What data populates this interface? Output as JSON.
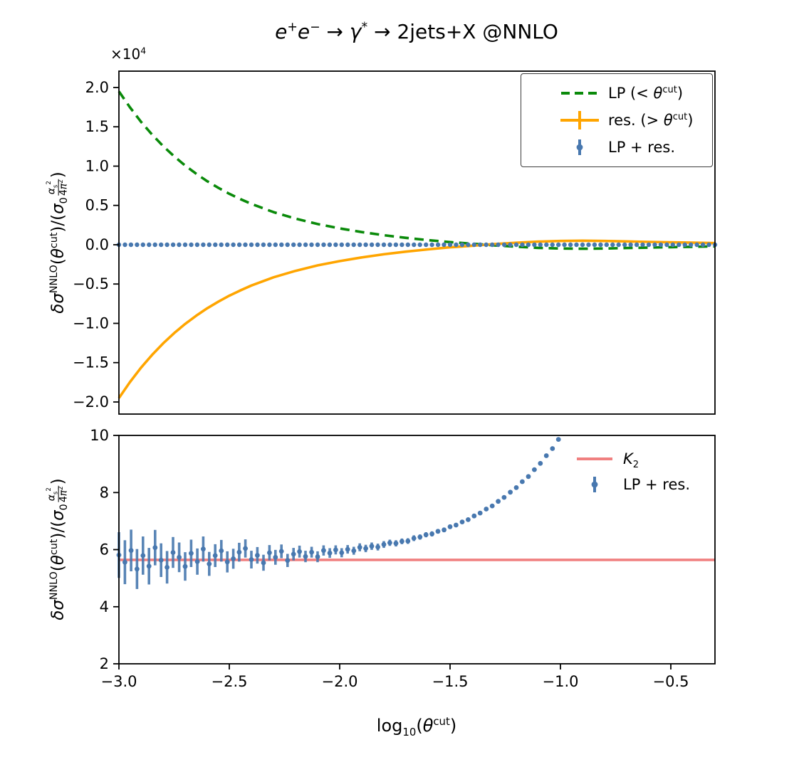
{
  "title": "_e_^+^_e_^−^ → _γ_^*^ → 2jets+X @NNLO",
  "xlabel": "log~10~(_θ_^cut^)",
  "colors": {
    "lp_green": "#0a8a0a",
    "res_orange": "#ffa500",
    "sum_blue": "#4878af",
    "k2_pink": "#f08080",
    "axis": "#000000"
  },
  "chart_data": [
    {
      "id": "top",
      "type": "line",
      "ylabel": "_δσ_^NNLO^(_θ_^cut^)/(_σ_~0~{_α_~s~^2^|4_π_^2^})",
      "offset_text": "×10^4^",
      "y_scale_factor": "1e4",
      "xlim": [
        -3.0,
        -0.3
      ],
      "ylim": [
        -2.154,
        2.208
      ],
      "xticks": [
        -3.0,
        -2.5,
        -2.0,
        -1.5,
        -1.0,
        -0.5
      ],
      "xticklabels": [
        "−3.0",
        "−2.5",
        "−2.0",
        "−1.5",
        "−1.0",
        "−0.5"
      ],
      "yticks": [
        2.0,
        1.5,
        1.0,
        0.5,
        0.0,
        -0.5,
        -1.0,
        -1.5,
        -2.0
      ],
      "yticklabels": [
        "2.0",
        "1.5",
        "1.0",
        "0.5",
        "0.0",
        "−0.5",
        "−1.0",
        "−1.5",
        "−2.0"
      ],
      "grid": false,
      "series": [
        {
          "name": "LP (< θ^cut)",
          "name_id": "lp",
          "kind": "line",
          "dash": true,
          "color": "#0a8a0a",
          "lw": 3.6,
          "x": [
            -3.0,
            -2.95,
            -2.9,
            -2.85,
            -2.8,
            -2.75,
            -2.7,
            -2.65,
            -2.6,
            -2.55,
            -2.5,
            -2.45,
            -2.4,
            -2.3,
            -2.2,
            -2.1,
            -2.0,
            -1.9,
            -1.8,
            -1.7,
            -1.6,
            -1.5,
            -1.4,
            -1.3,
            -1.2,
            -1.1,
            -1.0,
            -0.9,
            -0.8,
            -0.7,
            -0.6,
            -0.5,
            -0.4,
            -0.3
          ],
          "y": [
            1.95,
            1.747,
            1.564,
            1.402,
            1.255,
            1.125,
            1.007,
            0.903,
            0.808,
            0.725,
            0.648,
            0.581,
            0.519,
            0.415,
            0.332,
            0.263,
            0.208,
            0.161,
            0.121,
            0.088,
            0.059,
            0.033,
            0.013,
            -0.008,
            -0.025,
            -0.04,
            -0.048,
            -0.051,
            -0.048,
            -0.042,
            -0.036,
            -0.031,
            -0.026,
            -0.021
          ]
        },
        {
          "name": "res. (> θ^cut)",
          "name_id": "res",
          "kind": "line",
          "dash": false,
          "color": "#ffa500",
          "lw": 3.6,
          "x": [
            -3.0,
            -2.95,
            -2.9,
            -2.85,
            -2.8,
            -2.75,
            -2.7,
            -2.65,
            -2.6,
            -2.55,
            -2.5,
            -2.45,
            -2.4,
            -2.3,
            -2.2,
            -2.1,
            -2.0,
            -1.9,
            -1.8,
            -1.7,
            -1.6,
            -1.5,
            -1.4,
            -1.3,
            -1.2,
            -1.1,
            -1.0,
            -0.9,
            -0.8,
            -0.7,
            -0.6,
            -0.5,
            -0.4,
            -0.3
          ],
          "y": [
            -1.95,
            -1.747,
            -1.564,
            -1.402,
            -1.255,
            -1.125,
            -1.007,
            -0.903,
            -0.808,
            -0.725,
            -0.648,
            -0.581,
            -0.519,
            -0.415,
            -0.332,
            -0.263,
            -0.208,
            -0.161,
            -0.121,
            -0.088,
            -0.059,
            -0.033,
            -0.013,
            0.008,
            0.025,
            0.04,
            0.048,
            0.051,
            0.048,
            0.042,
            0.036,
            0.031,
            0.026,
            0.021
          ]
        },
        {
          "name": "LP + res.",
          "name_id": "lp_plus_res",
          "kind": "scatter_const",
          "color": "#4878af",
          "x0": -3.0,
          "x1": -0.3,
          "n": 100,
          "y": 0.0,
          "r": 3.2
        }
      ],
      "legend": {
        "border": true,
        "position": "upper right",
        "items": [
          {
            "label": "LP (< _θ_^cut^)",
            "sample": "dashed",
            "color": "#0a8a0a"
          },
          {
            "label": "res. (> _θ_^cut^)",
            "sample": "errline",
            "color": "#ffa500"
          },
          {
            "label": "LP + res.",
            "sample": "errdot",
            "color": "#4878af"
          }
        ]
      }
    },
    {
      "id": "bottom",
      "type": "errorbar",
      "ylabel": "_δσ_^NNLO^(_θ_^cut^)/(_σ_~0~{_α_~s~^2^|4_π_^2^})",
      "xlim": [
        -3.0,
        -0.3
      ],
      "ylim": [
        2,
        10
      ],
      "xticks": [
        -3.0,
        -2.5,
        -2.0,
        -1.5,
        -1.0,
        -0.5
      ],
      "xticklabels": [
        "−3.0",
        "−2.5",
        "−2.0",
        "−1.5",
        "−1.0",
        "−0.5"
      ],
      "yticks": [
        2,
        4,
        6,
        8,
        10
      ],
      "yticklabels": [
        "2",
        "4",
        "6",
        "8",
        "10"
      ],
      "grid": false,
      "series": [
        {
          "name": "K2",
          "name_id": "k2",
          "kind": "hline",
          "color": "#f08080",
          "lw": 3.6,
          "y": 5.64
        },
        {
          "name": "LP + res.",
          "name_id": "lp_plus_res",
          "kind": "errorbar",
          "color": "#4878af",
          "r": 3.4,
          "points": [
            [
              -3.0,
              5.81,
              0.8
            ],
            [
              -2.973,
              5.56,
              0.77
            ],
            [
              -2.945,
              5.97,
              0.73
            ],
            [
              -2.918,
              5.32,
              0.7
            ],
            [
              -2.891,
              5.79,
              0.67
            ],
            [
              -2.864,
              5.42,
              0.64
            ],
            [
              -2.836,
              6.07,
              0.62
            ],
            [
              -2.809,
              5.63,
              0.59
            ],
            [
              -2.782,
              5.38,
              0.57
            ],
            [
              -2.755,
              5.9,
              0.54
            ],
            [
              -2.727,
              5.73,
              0.52
            ],
            [
              -2.7,
              5.41,
              0.5
            ],
            [
              -2.673,
              5.87,
              0.48
            ],
            [
              -2.645,
              5.58,
              0.46
            ],
            [
              -2.618,
              6.02,
              0.44
            ],
            [
              -2.591,
              5.5,
              0.42
            ],
            [
              -2.564,
              5.79,
              0.4
            ],
            [
              -2.536,
              5.96,
              0.38
            ],
            [
              -2.509,
              5.57,
              0.37
            ],
            [
              -2.482,
              5.68,
              0.35
            ],
            [
              -2.455,
              5.91,
              0.33
            ],
            [
              -2.427,
              6.04,
              0.32
            ],
            [
              -2.4,
              5.65,
              0.31
            ],
            [
              -2.373,
              5.8,
              0.29
            ],
            [
              -2.345,
              5.54,
              0.28
            ],
            [
              -2.318,
              5.89,
              0.27
            ],
            [
              -2.291,
              5.73,
              0.26
            ],
            [
              -2.264,
              5.94,
              0.24
            ],
            [
              -2.236,
              5.62,
              0.23
            ],
            [
              -2.209,
              5.84,
              0.22
            ],
            [
              -2.182,
              5.93,
              0.21
            ],
            [
              -2.155,
              5.76,
              0.2
            ],
            [
              -2.127,
              5.91,
              0.19
            ],
            [
              -2.1,
              5.75,
              0.19
            ],
            [
              -2.073,
              5.97,
              0.18
            ],
            [
              -2.045,
              5.88,
              0.17
            ],
            [
              -2.018,
              5.99,
              0.16
            ],
            [
              -1.991,
              5.89,
              0.16
            ],
            [
              -1.964,
              6.01,
              0.15
            ],
            [
              -1.936,
              5.96,
              0.14
            ],
            [
              -1.909,
              6.08,
              0.14
            ],
            [
              -1.882,
              6.04,
              0.13
            ],
            [
              -1.855,
              6.12,
              0.13
            ],
            [
              -1.827,
              6.09,
              0.12
            ],
            [
              -1.8,
              6.18,
              0.12
            ],
            [
              -1.773,
              6.24,
              0.11
            ],
            [
              -1.745,
              6.22,
              0.11
            ],
            [
              -1.718,
              6.29,
              0.1
            ],
            [
              -1.691,
              6.3,
              0.1
            ],
            [
              -1.664,
              6.4,
              0.1
            ],
            [
              -1.636,
              6.44,
              0.09
            ],
            [
              -1.609,
              6.52,
              0.09
            ],
            [
              -1.582,
              6.55,
              0.09
            ],
            [
              -1.555,
              6.64,
              0.08
            ],
            [
              -1.527,
              6.69,
              0.08
            ],
            [
              -1.5,
              6.8,
              0.08
            ],
            [
              -1.473,
              6.86,
              0.07
            ],
            [
              -1.445,
              6.97,
              0.07
            ],
            [
              -1.418,
              7.05,
              0.07
            ],
            [
              -1.391,
              7.18,
              0.07
            ],
            [
              -1.364,
              7.28,
              0.06
            ],
            [
              -1.336,
              7.42,
              0.06
            ],
            [
              -1.309,
              7.53,
              0.06
            ],
            [
              -1.282,
              7.69,
              0.06
            ],
            [
              -1.255,
              7.83,
              0.06
            ],
            [
              -1.227,
              8.01,
              0.05
            ],
            [
              -1.2,
              8.17,
              0.05
            ],
            [
              -1.173,
              8.38,
              0.05
            ],
            [
              -1.145,
              8.56,
              0.05
            ],
            [
              -1.118,
              8.8,
              0.05
            ],
            [
              -1.091,
              9.02,
              0.05
            ],
            [
              -1.064,
              9.29,
              0.04
            ],
            [
              -1.036,
              9.54,
              0.04
            ],
            [
              -1.009,
              9.86,
              0.04
            ]
          ]
        }
      ],
      "legend": {
        "border": false,
        "position": "upper right",
        "items": [
          {
            "label": "_K_~2~",
            "sample": "line",
            "color": "#f08080"
          },
          {
            "label": "LP + res.",
            "sample": "errdot",
            "color": "#4878af"
          }
        ]
      }
    }
  ]
}
